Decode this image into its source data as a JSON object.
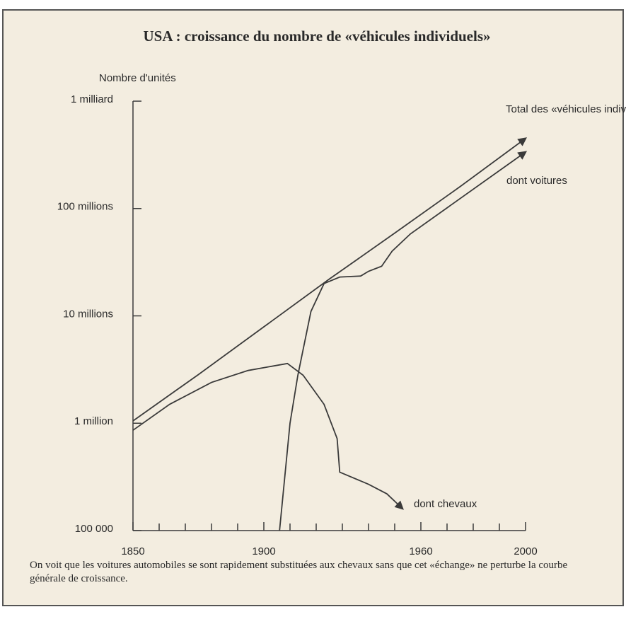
{
  "chart_data": {
    "type": "line",
    "title": "USA : croissance du nombre de «véhicules individuels»",
    "y_axis_label": "Nombre d'unités",
    "caption": "On voit que les voitures automobiles se sont rapidement substituées aux chevaux sans que cet «échange» ne perturbe la courbe générale de croissance.",
    "log_scale_y": true,
    "xlim": [
      1850,
      2000
    ],
    "xticks": [
      1850,
      1900,
      1960,
      2000
    ],
    "xminor_ticks": [
      1860,
      1870,
      1880,
      1890,
      1910,
      1920,
      1930,
      1940,
      1950,
      1970,
      1980,
      1990
    ],
    "ylim": [
      100000,
      1000000000
    ],
    "yticks": [
      {
        "value": 100000,
        "label": "100 000"
      },
      {
        "value": 1000000,
        "label": "1 million"
      },
      {
        "value": 10000000,
        "label": "10 millions"
      },
      {
        "value": 100000000,
        "label": "100 millions"
      },
      {
        "value": 1000000000,
        "label": "1 milliard"
      }
    ],
    "series": [
      {
        "name": "Total des «véhicules individuels»",
        "color": "#3a3a3a",
        "x": [
          1850,
          1875,
          1900,
          1925,
          1950,
          1975,
          2000
        ],
        "values": [
          1050000,
          2840000,
          7900000,
          22000000,
          59000000,
          160000000,
          450000000
        ]
      },
      {
        "name": "dont voitures",
        "color": "#3a3a3a",
        "x": [
          1906,
          1910,
          1913,
          1918,
          1923,
          1929,
          1937,
          1940,
          1945,
          1949,
          1956,
          2000
        ],
        "values": [
          100000,
          1000000,
          2800000,
          11000000,
          20000000,
          23000000,
          23500000,
          26000000,
          29000000,
          40000000,
          58000000,
          336000000
        ]
      },
      {
        "name": "dont chevaux",
        "color": "#3a3a3a",
        "x": [
          1850,
          1864,
          1880,
          1894,
          1909,
          1915,
          1923,
          1928,
          1929,
          1940,
          1947,
          1953
        ],
        "values": [
          860000,
          1500000,
          2400000,
          3100000,
          3600000,
          2800000,
          1500000,
          720000,
          350000,
          270000,
          220000,
          160000
        ]
      }
    ]
  }
}
